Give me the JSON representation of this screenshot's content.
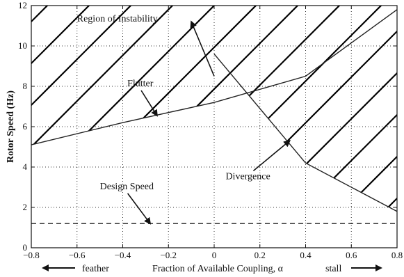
{
  "chart_data": {
    "type": "line",
    "title": "",
    "xlabel": "Fraction of Available Coupling, α",
    "ylabel": "Rotor Speed (Hz)",
    "xlim": [
      -0.8,
      0.8
    ],
    "ylim": [
      0,
      12
    ],
    "grid": true,
    "x_ticks": [
      -0.8,
      -0.6,
      -0.4,
      -0.2,
      0,
      0.2,
      0.4,
      0.6,
      0.8
    ],
    "x_tick_labels": [
      "−0.8",
      "−0.6",
      "−0.4",
      "−0.2",
      "0",
      "0.2",
      "0.4",
      "0.6",
      "0.8"
    ],
    "y_ticks": [
      0,
      2,
      4,
      6,
      8,
      10,
      12
    ],
    "y_tick_labels": [
      "0",
      "2",
      "4",
      "6",
      "8",
      "10",
      "12"
    ],
    "series": [
      {
        "name": "Flutter",
        "style": "solid",
        "x": [
          -0.8,
          -0.4,
          0,
          0.4,
          0.8
        ],
        "y": [
          5.1,
          6.2,
          7.2,
          8.5,
          11.8
        ]
      },
      {
        "name": "Divergence",
        "style": "solid",
        "x": [
          0,
          0.4,
          0.8
        ],
        "y": [
          9.6,
          4.2,
          1.8
        ]
      },
      {
        "name": "Design Speed",
        "style": "dashed",
        "x": [
          -0.8,
          0.8
        ],
        "y": [
          1.2,
          1.2
        ]
      }
    ],
    "annotations": [
      {
        "text": "Region of Instability",
        "x": -0.6,
        "y": 11.2,
        "arrow_to": [
          -0.1,
          11.2
        ]
      },
      {
        "text": "Flutter",
        "x": -0.38,
        "y": 8.0,
        "arrow_to": [
          -0.25,
          6.55
        ]
      },
      {
        "text": "Divergence",
        "x": 0.05,
        "y": 3.4,
        "arrow_to": [
          0.33,
          5.3
        ]
      },
      {
        "text": "Design Speed",
        "x": -0.5,
        "y": 2.9,
        "arrow_to": [
          -0.28,
          1.2
        ]
      }
    ],
    "region_hatch_note": "diagonal hatching above the flutter and divergence boundaries",
    "bottom_labels": {
      "left": "feather",
      "right": "stall"
    }
  },
  "colors": {
    "axis": "#111111",
    "series": "#222222",
    "grid": "#333333",
    "hatch": "#000000"
  }
}
